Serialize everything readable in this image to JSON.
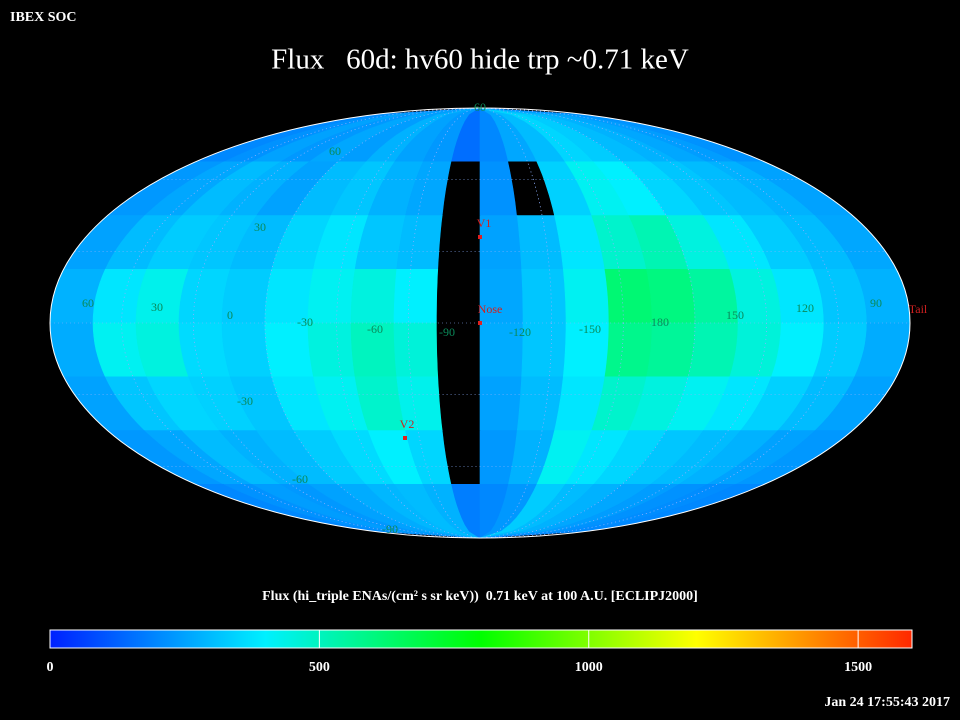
{
  "header": {
    "label": "IBEX SOC",
    "timestamp": "Jan 24 17:55:43 2017"
  },
  "chart_data": {
    "type": "skymap",
    "title": "Flux   60d: hv60 hide trp ~0.71 keV",
    "caption": "Flux (hi_triple ENAs/(cm² s sr keV))  0.71 keV at 100 A.U. [ECLIPJ2000]",
    "grid_labels": [
      60,
      60,
      30,
      60,
      30,
      0,
      -30,
      -60,
      -90,
      -120,
      -150,
      180,
      150,
      120,
      90,
      -30,
      -60,
      -90
    ],
    "markers": [
      "V1",
      "Nose",
      "V2",
      "Tail"
    ],
    "values": [
      [
        200,
        220,
        250,
        230,
        260,
        240,
        280,
        250,
        230,
        150,
        200,
        260,
        300,
        350,
        330,
        300,
        280,
        260,
        240,
        220
      ],
      [
        230,
        260,
        300,
        280,
        250,
        300,
        320,
        280,
        260,
        null,
        220,
        null,
        340,
        420,
        400,
        350,
        320,
        300,
        280,
        250
      ],
      [
        250,
        300,
        330,
        320,
        300,
        350,
        380,
        320,
        300,
        null,
        250,
        300,
        380,
        480,
        520,
        450,
        380,
        330,
        300,
        260
      ],
      [
        280,
        380,
        430,
        350,
        330,
        380,
        420,
        450,
        400,
        null,
        260,
        320,
        420,
        620,
        600,
        550,
        450,
        380,
        320,
        280
      ],
      [
        270,
        420,
        450,
        360,
        340,
        400,
        450,
        500,
        460,
        null,
        270,
        320,
        400,
        580,
        560,
        520,
        460,
        400,
        330,
        270
      ],
      [
        250,
        320,
        350,
        340,
        320,
        380,
        420,
        480,
        430,
        null,
        250,
        300,
        380,
        480,
        450,
        420,
        380,
        340,
        300,
        250
      ],
      [
        230,
        260,
        300,
        280,
        300,
        330,
        360,
        400,
        350,
        null,
        230,
        280,
        420,
        380,
        350,
        320,
        300,
        280,
        250,
        230
      ],
      [
        200,
        220,
        240,
        230,
        250,
        270,
        290,
        300,
        280,
        180,
        200,
        230,
        330,
        300,
        280,
        260,
        240,
        220,
        210,
        200
      ]
    ],
    "colormap": [
      "#0020ff",
      "#00f0ff",
      "#00ff00",
      "#ffff00",
      "#ff2800"
    ],
    "clim": [
      0,
      1600
    ],
    "cticks": [
      0,
      500,
      1000,
      1500
    ]
  }
}
